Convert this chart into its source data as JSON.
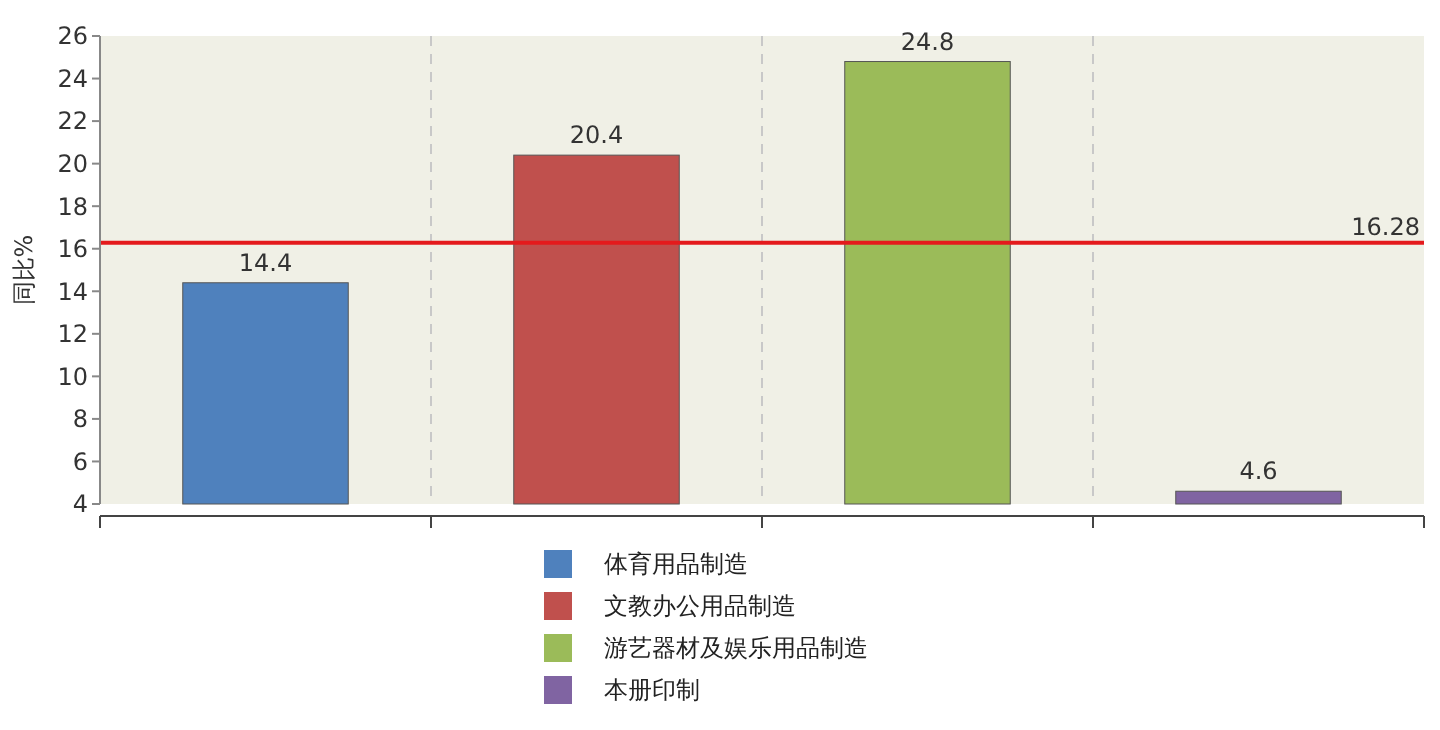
{
  "chart_data": {
    "type": "bar",
    "ylabel": "同比%",
    "categories": [
      null,
      null,
      null,
      null
    ],
    "series": [
      {
        "name": "体育用品制造",
        "color": "#4f81bd",
        "values": [
          14.4,
          null,
          null,
          null
        ]
      },
      {
        "name": "文教办公用品制造",
        "color": "#c0504d",
        "values": [
          null,
          20.4,
          null,
          null
        ]
      },
      {
        "name": "游艺器材及娱乐用品制造",
        "color": "#9bbb59",
        "values": [
          null,
          null,
          24.8,
          null
        ]
      },
      {
        "name": "本册印制",
        "color": "#8064a2",
        "values": [
          null,
          null,
          null,
          4.6
        ]
      }
    ],
    "ylim": [
      4,
      26
    ],
    "yticks": [
      4,
      6,
      8,
      10,
      12,
      14,
      16,
      18,
      20,
      22,
      24,
      26
    ],
    "ref_lines": [
      {
        "axis": "y",
        "value": 16.28,
        "label": "16.28",
        "color": "#e41a1c"
      }
    ],
    "data_labels": true,
    "grid": "x",
    "legend": "bottom"
  }
}
